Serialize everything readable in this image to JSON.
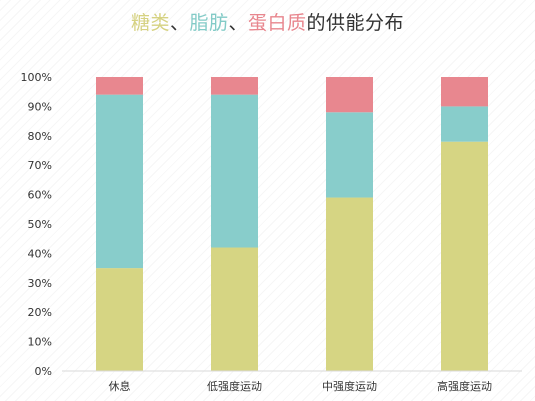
{
  "title": {
    "parts": [
      {
        "text": "糖类",
        "color": "#d6d282"
      },
      {
        "text": "、",
        "color": "#333333"
      },
      {
        "text": "脂肪",
        "color": "#83cbc7"
      },
      {
        "text": "、",
        "color": "#333333"
      },
      {
        "text": "蛋白质",
        "color": "#e8868e"
      },
      {
        "text": "的供能分布",
        "color": "#333333"
      }
    ]
  },
  "chart_data": {
    "type": "bar",
    "stacked": true,
    "categories": [
      "休息",
      "低强度运动",
      "中强度运动",
      "高强度运动"
    ],
    "series": [
      {
        "name": "糖类",
        "color": "#d6d583",
        "values": [
          35,
          42,
          59,
          78
        ]
      },
      {
        "name": "脂肪",
        "color": "#88cdcb",
        "values": [
          59,
          52,
          29,
          12
        ]
      },
      {
        "name": "蛋白质",
        "color": "#e8878f",
        "values": [
          6,
          6,
          12,
          10
        ]
      }
    ],
    "ylim": [
      0,
      100
    ],
    "yticks": [
      "0%",
      "10%",
      "20%",
      "30%",
      "40%",
      "50%",
      "60%",
      "70%",
      "80%",
      "90%",
      "100%"
    ],
    "grid": false,
    "legend": "none (series colors shown in title)"
  }
}
